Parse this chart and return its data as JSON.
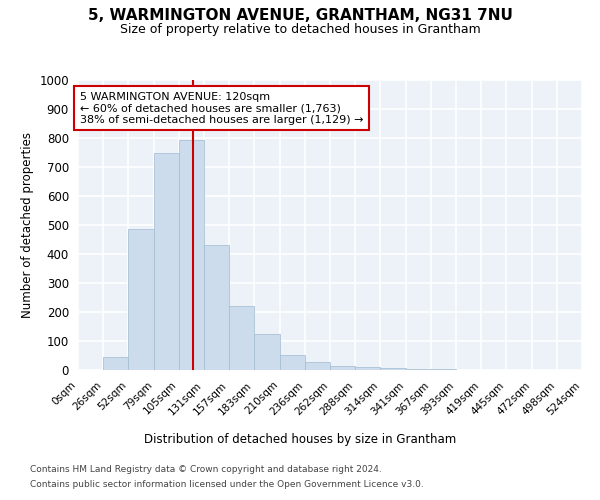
{
  "title": "5, WARMINGTON AVENUE, GRANTHAM, NG31 7NU",
  "subtitle": "Size of property relative to detached houses in Grantham",
  "xlabel": "Distribution of detached houses by size in Grantham",
  "ylabel": "Number of detached properties",
  "bar_color": "#ccdcec",
  "bar_edge_color": "#a0bcd0",
  "background_color": "#edf2f9",
  "grid_color": "#ffffff",
  "bins": [
    0,
    26,
    52,
    79,
    105,
    131,
    157,
    183,
    210,
    236,
    262,
    288,
    314,
    341,
    367,
    393,
    419,
    445,
    472,
    498,
    524
  ],
  "values": [
    0,
    45,
    487,
    748,
    792,
    432,
    220,
    125,
    52,
    28,
    15,
    10,
    6,
    3,
    2,
    1,
    1,
    0,
    0,
    0
  ],
  "property_size": 120,
  "vline_color": "#cc0000",
  "annotation_text": "5 WARMINGTON AVENUE: 120sqm\n← 60% of detached houses are smaller (1,763)\n38% of semi-detached houses are larger (1,129) →",
  "annotation_box_color": "#ffffff",
  "annotation_box_edge_color": "#cc0000",
  "ylim": [
    0,
    1000
  ],
  "yticks": [
    0,
    100,
    200,
    300,
    400,
    500,
    600,
    700,
    800,
    900,
    1000
  ],
  "footer_line1": "Contains HM Land Registry data © Crown copyright and database right 2024.",
  "footer_line2": "Contains public sector information licensed under the Open Government Licence v3.0."
}
